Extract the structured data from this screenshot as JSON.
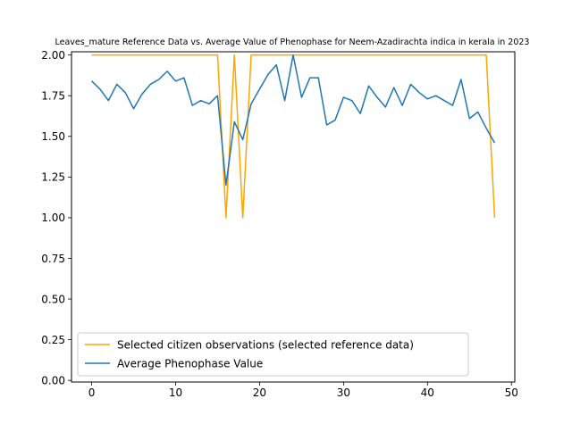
{
  "chart_data": {
    "type": "line",
    "title": "Leaves_mature Reference Data vs. Average Value of Phenophase for Neem-Azadirachta indica in kerala in 2023",
    "xlabel": "",
    "ylabel": "",
    "xlim": [
      -2.4,
      50.4
    ],
    "ylim": [
      -0.01,
      2.02
    ],
    "xticks": [
      0,
      10,
      20,
      30,
      40,
      50
    ],
    "yticks": [
      0.0,
      0.25,
      0.5,
      0.75,
      1.0,
      1.25,
      1.5,
      1.75,
      2.0
    ],
    "ytick_labels": [
      "0.00",
      "0.25",
      "0.50",
      "0.75",
      "1.00",
      "1.25",
      "1.50",
      "1.75",
      "2.00"
    ],
    "legend_position": "lower-left",
    "grid": false,
    "series": [
      {
        "name": "Selected citizen observations (selected reference data)",
        "color": "#ffa500",
        "x": [
          0,
          1,
          2,
          3,
          4,
          5,
          6,
          7,
          8,
          9,
          10,
          11,
          12,
          13,
          14,
          15,
          16,
          17,
          18,
          19,
          20,
          21,
          22,
          23,
          24,
          25,
          26,
          27,
          28,
          29,
          30,
          31,
          32,
          33,
          34,
          35,
          36,
          37,
          38,
          39,
          40,
          41,
          42,
          43,
          44,
          45,
          46,
          47,
          48
        ],
        "values": [
          2,
          2,
          2,
          2,
          2,
          2,
          2,
          2,
          2,
          2,
          2,
          2,
          2,
          2,
          2,
          2,
          1,
          2,
          1,
          2,
          2,
          2,
          2,
          2,
          2,
          2,
          2,
          2,
          2,
          2,
          2,
          2,
          2,
          2,
          2,
          2,
          2,
          2,
          2,
          2,
          2,
          2,
          2,
          2,
          2,
          2,
          2,
          2,
          1
        ]
      },
      {
        "name": "Average Phenophase Value",
        "color": "#1f77b4",
        "x": [
          0,
          1,
          2,
          3,
          4,
          5,
          6,
          7,
          8,
          9,
          10,
          11,
          12,
          13,
          14,
          15,
          16,
          17,
          18,
          19,
          20,
          21,
          22,
          23,
          24,
          25,
          26,
          27,
          28,
          29,
          30,
          31,
          32,
          33,
          34,
          35,
          36,
          37,
          38,
          39,
          40,
          41,
          42,
          43,
          44,
          45,
          46,
          47,
          48
        ],
        "values": [
          1.84,
          1.79,
          1.72,
          1.82,
          1.77,
          1.67,
          1.76,
          1.82,
          1.85,
          1.9,
          1.84,
          1.86,
          1.69,
          1.72,
          1.7,
          1.75,
          1.2,
          1.59,
          1.48,
          1.7,
          1.79,
          1.88,
          1.94,
          1.72,
          2.0,
          1.74,
          1.86,
          1.86,
          1.57,
          1.6,
          1.74,
          1.72,
          1.64,
          1.81,
          1.74,
          1.68,
          1.8,
          1.69,
          1.82,
          1.77,
          1.73,
          1.75,
          1.72,
          1.69,
          1.85,
          1.61,
          1.65,
          1.55,
          1.46
        ]
      }
    ]
  }
}
